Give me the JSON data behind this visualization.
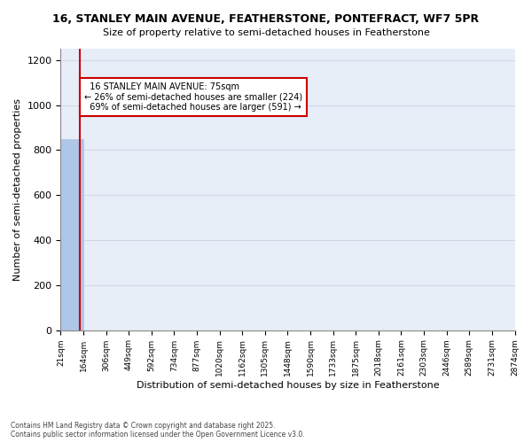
{
  "title_line1": "16, STANLEY MAIN AVENUE, FEATHERSTONE, PONTEFRACT, WF7 5PR",
  "title_line2": "Size of property relative to semi-detached houses in Featherstone",
  "xlabel": "Distribution of semi-detached houses by size in Featherstone",
  "ylabel": "Number of semi-detached properties",
  "property_size": 75,
  "property_label": "16 STANLEY MAIN AVENUE: 75sqm",
  "pct_smaller": 26,
  "n_smaller": 224,
  "pct_larger": 69,
  "n_larger": 591,
  "bin_labels": [
    "21sqm",
    "164sqm",
    "306sqm",
    "449sqm",
    "592sqm",
    "734sqm",
    "877sqm",
    "1020sqm",
    "1162sqm",
    "1305sqm",
    "1448sqm",
    "1590sqm",
    "1733sqm",
    "1875sqm",
    "2018sqm",
    "2161sqm",
    "2303sqm",
    "2446sqm",
    "2589sqm",
    "2731sqm",
    "2874sqm"
  ],
  "bar_heights": [
    850,
    0,
    0,
    0,
    0,
    0,
    0,
    0,
    0,
    0,
    0,
    0,
    0,
    0,
    0,
    0,
    0,
    0,
    0,
    0
  ],
  "bar_color": "#aec6e8",
  "bar_edge_color": "#aec6e8",
  "grid_color": "#d0d8e8",
  "background_color": "#e8eef8",
  "annotation_box_color": "#cc0000",
  "red_line_color": "#cc0000",
  "ylim": [
    0,
    1250
  ],
  "yticks": [
    0,
    200,
    400,
    600,
    800,
    1000,
    1200
  ],
  "footnote": "Contains HM Land Registry data © Crown copyright and database right 2025.\nContains public sector information licensed under the Open Government Licence v3.0."
}
